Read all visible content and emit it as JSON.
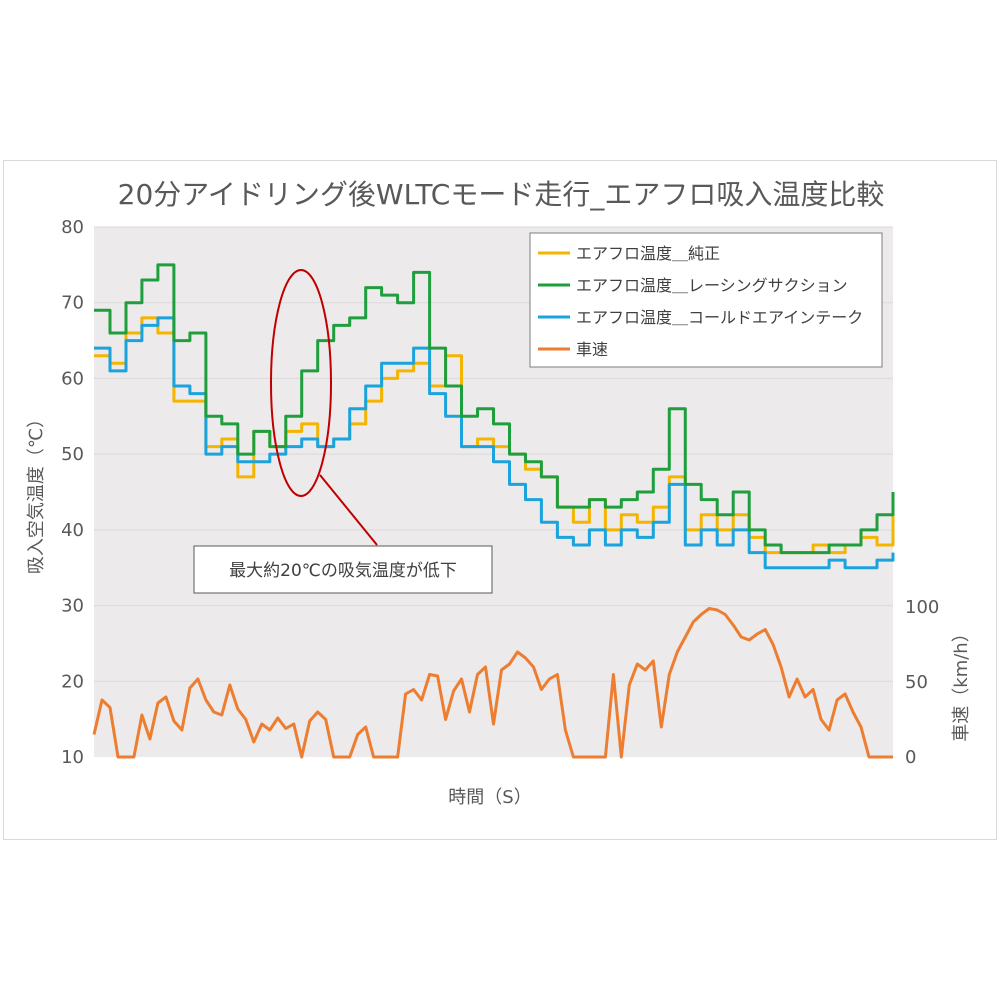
{
  "chart_data": {
    "type": "line",
    "title": "20分アイドリング後WLTCモード走行_エアフロ吸入温度比較",
    "xlabel": "時間（S）",
    "ylabel": "吸入空気温度（℃）",
    "y2label": "車速（km/h）",
    "ylim": [
      10,
      80
    ],
    "y2lim": [
      0,
      100
    ],
    "yticks": [
      "10",
      "20",
      "30",
      "40",
      "50",
      "60",
      "70",
      "80"
    ],
    "y2ticks": [
      "0",
      "50",
      "100"
    ],
    "x_domain": [
      0,
      1
    ],
    "grid": true,
    "legend": "top-right",
    "annotation": "最大約20℃の吸気温度が低下",
    "series": [
      {
        "name": "エアフロ温度＿純正",
        "axis": "left",
        "color": "#f4b400",
        "x": [
          0,
          0.02,
          0.04,
          0.06,
          0.08,
          0.1,
          0.12,
          0.14,
          0.16,
          0.18,
          0.2,
          0.22,
          0.24,
          0.26,
          0.28,
          0.3,
          0.32,
          0.34,
          0.36,
          0.38,
          0.4,
          0.42,
          0.44,
          0.46,
          0.48,
          0.5,
          0.52,
          0.54,
          0.56,
          0.58,
          0.6,
          0.62,
          0.64,
          0.66,
          0.68,
          0.7,
          0.72,
          0.74,
          0.76,
          0.78,
          0.8,
          0.82,
          0.84,
          0.86,
          0.88,
          0.9,
          0.92,
          0.94,
          0.96,
          0.98,
          1.0
        ],
        "values": [
          63,
          62,
          66,
          68,
          66,
          57,
          57,
          51,
          52,
          47,
          53,
          51,
          53,
          54,
          51,
          52,
          54,
          57,
          60,
          61,
          62,
          59,
          63,
          51,
          52,
          51,
          50,
          48,
          47,
          43,
          41,
          44,
          40,
          42,
          41,
          43,
          47,
          40,
          42,
          40,
          42,
          39,
          37,
          37,
          37,
          38,
          37,
          38,
          39,
          38,
          42
        ]
      },
      {
        "name": "エアフロ温度＿レーシングサクション",
        "axis": "left",
        "color": "#1f9e3e",
        "x": [
          0,
          0.02,
          0.04,
          0.06,
          0.08,
          0.1,
          0.12,
          0.14,
          0.16,
          0.18,
          0.2,
          0.22,
          0.24,
          0.26,
          0.28,
          0.3,
          0.32,
          0.34,
          0.36,
          0.38,
          0.4,
          0.42,
          0.44,
          0.46,
          0.48,
          0.5,
          0.52,
          0.54,
          0.56,
          0.58,
          0.6,
          0.62,
          0.64,
          0.66,
          0.68,
          0.7,
          0.72,
          0.74,
          0.76,
          0.78,
          0.8,
          0.82,
          0.84,
          0.86,
          0.88,
          0.9,
          0.92,
          0.94,
          0.96,
          0.98,
          1.0
        ],
        "values": [
          69,
          66,
          70,
          73,
          75,
          65,
          66,
          55,
          54,
          50,
          53,
          51,
          55,
          61,
          65,
          67,
          68,
          72,
          71,
          70,
          74,
          64,
          59,
          55,
          56,
          54,
          50,
          49,
          47,
          43,
          43,
          44,
          43,
          44,
          45,
          48,
          56,
          46,
          44,
          42,
          45,
          40,
          38,
          37,
          37,
          37,
          38,
          38,
          40,
          42,
          45
        ]
      },
      {
        "name": "エアフロ温度＿コールドエアインテーク",
        "axis": "left",
        "color": "#1aa3dc",
        "x": [
          0,
          0.02,
          0.04,
          0.06,
          0.08,
          0.1,
          0.12,
          0.14,
          0.16,
          0.18,
          0.2,
          0.22,
          0.24,
          0.26,
          0.28,
          0.3,
          0.32,
          0.34,
          0.36,
          0.38,
          0.4,
          0.42,
          0.44,
          0.46,
          0.48,
          0.5,
          0.52,
          0.54,
          0.56,
          0.58,
          0.6,
          0.62,
          0.64,
          0.66,
          0.68,
          0.7,
          0.72,
          0.74,
          0.76,
          0.78,
          0.8,
          0.82,
          0.84,
          0.86,
          0.88,
          0.9,
          0.92,
          0.94,
          0.96,
          0.98,
          1.0
        ],
        "values": [
          64,
          61,
          65,
          67,
          68,
          59,
          58,
          50,
          51,
          49,
          49,
          50,
          51,
          52,
          51,
          52,
          56,
          59,
          62,
          62,
          64,
          58,
          55,
          51,
          51,
          49,
          46,
          44,
          41,
          39,
          38,
          40,
          38,
          40,
          39,
          41,
          46,
          38,
          40,
          38,
          40,
          37,
          35,
          35,
          35,
          35,
          36,
          35,
          35,
          36,
          37
        ]
      },
      {
        "name": "車速",
        "axis": "right",
        "color": "#ed7d31",
        "x": [
          0,
          0.01,
          0.02,
          0.03,
          0.04,
          0.05,
          0.06,
          0.07,
          0.08,
          0.09,
          0.1,
          0.11,
          0.12,
          0.13,
          0.14,
          0.15,
          0.16,
          0.17,
          0.18,
          0.19,
          0.2,
          0.21,
          0.22,
          0.23,
          0.24,
          0.25,
          0.26,
          0.27,
          0.28,
          0.29,
          0.3,
          0.31,
          0.32,
          0.33,
          0.34,
          0.35,
          0.36,
          0.37,
          0.38,
          0.39,
          0.4,
          0.41,
          0.42,
          0.43,
          0.44,
          0.45,
          0.46,
          0.47,
          0.48,
          0.49,
          0.5,
          0.51,
          0.52,
          0.53,
          0.54,
          0.55,
          0.56,
          0.57,
          0.58,
          0.59,
          0.6,
          0.61,
          0.62,
          0.63,
          0.64,
          0.65,
          0.66,
          0.67,
          0.68,
          0.69,
          0.7,
          0.71,
          0.72,
          0.73,
          0.74,
          0.75,
          0.76,
          0.77,
          0.78,
          0.79,
          0.8,
          0.81,
          0.82,
          0.83,
          0.84,
          0.85,
          0.86,
          0.87,
          0.88,
          0.89,
          0.9,
          0.91,
          0.92,
          0.93,
          0.94,
          0.95,
          0.96,
          0.97,
          0.98,
          0.99,
          1.0
        ],
        "values": [
          15,
          38,
          33,
          0,
          0,
          0,
          28,
          12,
          36,
          40,
          24,
          18,
          46,
          52,
          38,
          30,
          28,
          48,
          32,
          25,
          10,
          22,
          18,
          26,
          19,
          22,
          0,
          24,
          30,
          25,
          0,
          0,
          0,
          15,
          20,
          0,
          0,
          0,
          0,
          42,
          45,
          38,
          55,
          54,
          25,
          44,
          52,
          30,
          55,
          60,
          22,
          58,
          62,
          70,
          66,
          60,
          45,
          52,
          55,
          18,
          0,
          0,
          0,
          0,
          0,
          55,
          0,
          48,
          62,
          58,
          64,
          20,
          55,
          70,
          80,
          90,
          95,
          99,
          98,
          95,
          88,
          80,
          78,
          82,
          85,
          75,
          60,
          40,
          52,
          40,
          45,
          25,
          18,
          38,
          42,
          30,
          20,
          0,
          0,
          0,
          0
        ]
      }
    ]
  }
}
